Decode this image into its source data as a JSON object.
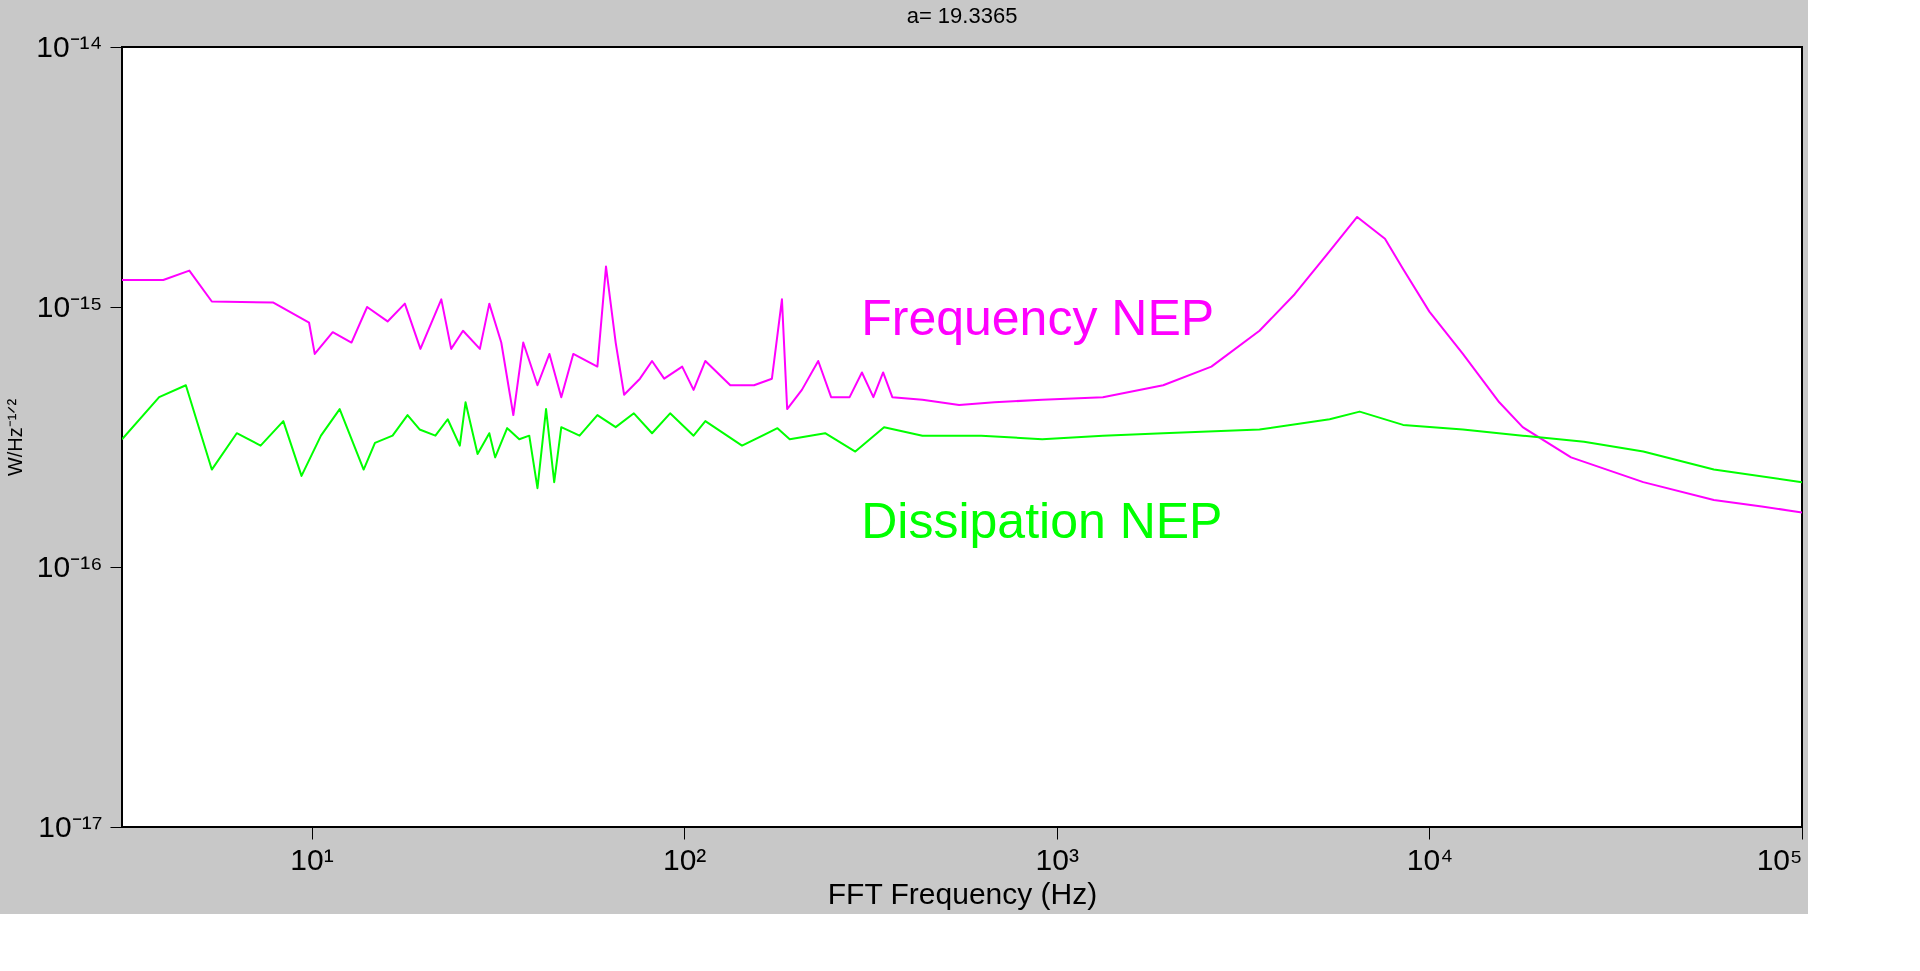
{
  "chart_data": {
    "type": "line",
    "title": "a= 19.3365",
    "xlabel": "FFT Frequency (Hz)",
    "ylabel": "W/Hz⁻¹ᐟ²",
    "log": "xy",
    "grid": false,
    "legend": false,
    "marker": "none",
    "line_style": "solid",
    "xlim": [
      3.1,
      100000
    ],
    "ylim": [
      1e-17,
      1e-14
    ],
    "xticks": [
      {
        "value": 10,
        "label": "10¹"
      },
      {
        "value": 100,
        "label": "10²"
      },
      {
        "value": 1000,
        "label": "10³"
      },
      {
        "value": 10000,
        "label": "10⁴"
      },
      {
        "value": 100000,
        "label": "10⁵"
      }
    ],
    "yticks": [
      {
        "value": 1e-17,
        "label": "10⁻¹⁷"
      },
      {
        "value": 1e-16,
        "label": "10⁻¹⁶"
      },
      {
        "value": 1e-15,
        "label": "10⁻¹⁵"
      },
      {
        "value": 1e-14,
        "label": "10⁻¹⁴"
      }
    ],
    "series": [
      {
        "name": "Frequency NEP",
        "color": "#ff00ff",
        "x": [
          3.1,
          4.0,
          4.7,
          5.4,
          7.9,
          9.85,
          10.2,
          11.4,
          12.8,
          14.1,
          16.0,
          17.8,
          19.6,
          22.3,
          23.7,
          25.5,
          28.3,
          30.0,
          32.3,
          34.8,
          37.0,
          40.4,
          43.5,
          46.8,
          50.4,
          58.5,
          61.7,
          65.5,
          69.0,
          76.1,
          82.0,
          88.4,
          98.8,
          106,
          114,
          133,
          154,
          172,
          183,
          189,
          207,
          229,
          248,
          278,
          300,
          322,
          342,
          362,
          436,
          547,
          680,
          914,
          1330,
          1930,
          2600,
          3500,
          4350,
          5400,
          6400,
          7600,
          8500,
          10000,
          12300,
          15400,
          17800,
          24000,
          37500,
          58000,
          78000,
          100000
        ],
        "values": [
          1.27e-15,
          1.27e-15,
          1.38e-15,
          1.05e-15,
          1.04e-15,
          8.7e-16,
          6.6e-16,
          8e-16,
          7.3e-16,
          1e-15,
          8.8e-16,
          1.03e-15,
          6.9e-16,
          1.07e-15,
          6.9e-16,
          8.1e-16,
          6.9e-16,
          1.03e-15,
          7.3e-16,
          3.84e-16,
          7.3e-16,
          5e-16,
          6.6e-16,
          4.5e-16,
          6.6e-16,
          5.9e-16,
          1.43e-15,
          7.3e-16,
          4.6e-16,
          5.3e-16,
          6.2e-16,
          5.3e-16,
          5.9e-16,
          4.8e-16,
          6.2e-16,
          5e-16,
          5e-16,
          5.3e-16,
          1.07e-15,
          4.05e-16,
          4.8e-16,
          6.2e-16,
          4.5e-16,
          4.5e-16,
          5.6e-16,
          4.5e-16,
          5.6e-16,
          4.5e-16,
          4.4e-16,
          4.2e-16,
          4.3e-16,
          4.4e-16,
          4.5e-16,
          5e-16,
          5.9e-16,
          8.1e-16,
          1.12e-15,
          1.64e-15,
          2.22e-15,
          1.83e-15,
          1.4e-15,
          9.6e-16,
          6.6e-16,
          4.3e-16,
          3.45e-16,
          2.64e-16,
          2.12e-16,
          1.81e-16,
          1.71e-16,
          1.62e-16
        ]
      },
      {
        "name": "Dissipation NEP",
        "color": "#00ff00",
        "x": [
          3.1,
          3.9,
          4.6,
          5.4,
          6.3,
          7.3,
          8.4,
          9.4,
          10.6,
          11.9,
          13.8,
          14.8,
          16.5,
          18.1,
          19.5,
          21.5,
          23.2,
          25.0,
          25.9,
          27.9,
          30.0,
          31.1,
          33.5,
          36.1,
          38.4,
          40.4,
          42.6,
          44.8,
          46.8,
          52.4,
          58.5,
          65.5,
          73.3,
          82.0,
          91.7,
          106,
          114,
          143,
          178,
          192,
          239,
          288,
          344,
          436,
          627,
          914,
          1330,
          1930,
          3500,
          5400,
          6500,
          8500,
          12300,
          17800,
          26000,
          37500,
          58000,
          100000
        ],
        "values": [
          3.1e-16,
          4.5e-16,
          5e-16,
          2.37e-16,
          3.27e-16,
          2.93e-16,
          3.64e-16,
          2.24e-16,
          3.2e-16,
          4.05e-16,
          2.37e-16,
          3e-16,
          3.2e-16,
          3.84e-16,
          3.38e-16,
          3.2e-16,
          3.7e-16,
          2.93e-16,
          4.3e-16,
          2.72e-16,
          3.27e-16,
          2.64e-16,
          3.42e-16,
          3.1e-16,
          3.2e-16,
          2.01e-16,
          4.05e-16,
          2.12e-16,
          3.45e-16,
          3.2e-16,
          3.84e-16,
          3.45e-16,
          3.9e-16,
          3.27e-16,
          3.9e-16,
          3.2e-16,
          3.64e-16,
          2.93e-16,
          3.42e-16,
          3.1e-16,
          3.27e-16,
          2.78e-16,
          3.45e-16,
          3.2e-16,
          3.2e-16,
          3.1e-16,
          3.2e-16,
          3.27e-16,
          3.38e-16,
          3.7e-16,
          3.96e-16,
          3.52e-16,
          3.38e-16,
          3.2e-16,
          3.03e-16,
          2.78e-16,
          2.37e-16,
          2.12e-16
        ]
      }
    ]
  }
}
